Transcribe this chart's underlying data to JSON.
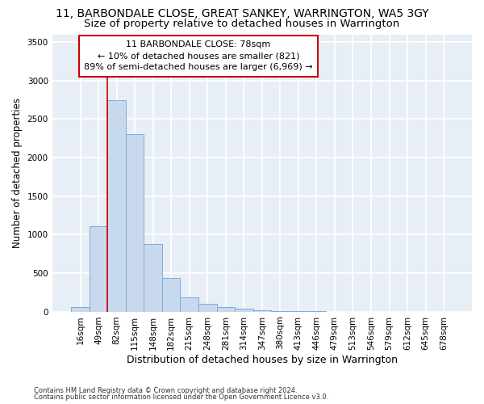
{
  "title1": "11, BARBONDALE CLOSE, GREAT SANKEY, WARRINGTON, WA5 3GY",
  "title2": "Size of property relative to detached houses in Warrington",
  "xlabel": "Distribution of detached houses by size in Warrington",
  "ylabel": "Number of detached properties",
  "bar_color": "#c8d9ee",
  "bar_edge_color": "#7aadd4",
  "categories": [
    "16sqm",
    "49sqm",
    "82sqm",
    "115sqm",
    "148sqm",
    "182sqm",
    "215sqm",
    "248sqm",
    "281sqm",
    "314sqm",
    "347sqm",
    "380sqm",
    "413sqm",
    "446sqm",
    "479sqm",
    "513sqm",
    "546sqm",
    "579sqm",
    "612sqm",
    "645sqm",
    "678sqm"
  ],
  "values": [
    55,
    1110,
    2750,
    2300,
    880,
    440,
    185,
    100,
    55,
    35,
    20,
    10,
    5,
    2,
    0,
    0,
    0,
    0,
    0,
    0,
    0
  ],
  "ylim": [
    0,
    3600
  ],
  "yticks": [
    0,
    500,
    1000,
    1500,
    2000,
    2500,
    3000,
    3500
  ],
  "property_line_x": 2.0,
  "annotation_text": "11 BARBONDALE CLOSE: 78sqm\n← 10% of detached houses are smaller (821)\n89% of semi-detached houses are larger (6,969) →",
  "annotation_box_color": "#ffffff",
  "annotation_box_edge_color": "#cc0000",
  "footer1": "Contains HM Land Registry data © Crown copyright and database right 2024.",
  "footer2": "Contains public sector information licensed under the Open Government Licence v3.0.",
  "bg_color": "#e8eef5",
  "grid_color": "#ffffff",
  "title1_fontsize": 10,
  "title2_fontsize": 9.5,
  "tick_fontsize": 7.5,
  "xlabel_fontsize": 9,
  "ylabel_fontsize": 8.5,
  "annotation_fontsize": 8,
  "footer_fontsize": 6
}
